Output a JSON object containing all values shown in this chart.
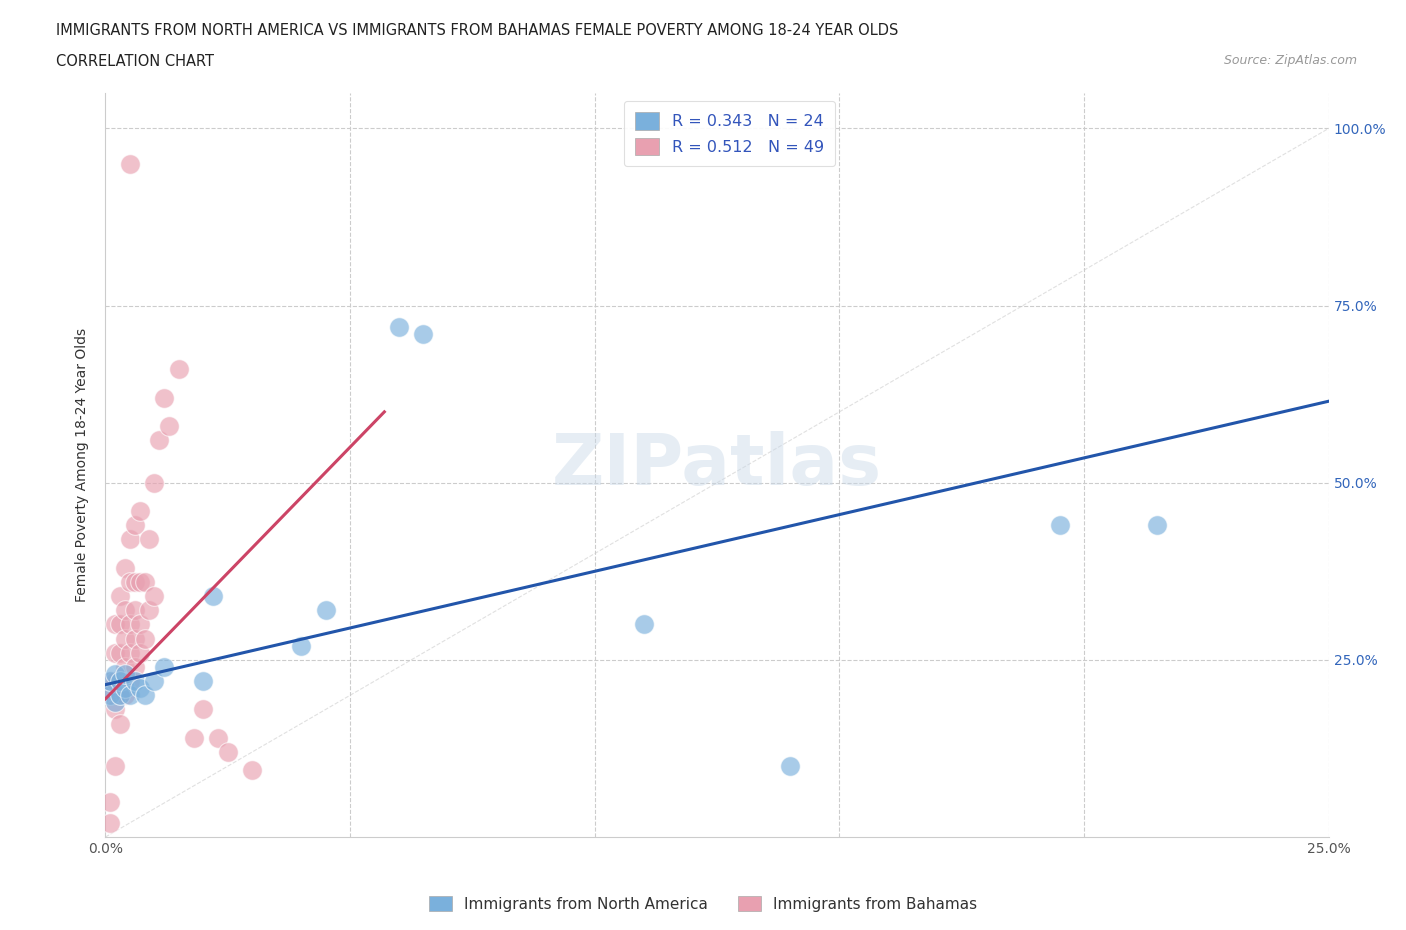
{
  "title_line1": "IMMIGRANTS FROM NORTH AMERICA VS IMMIGRANTS FROM BAHAMAS FEMALE POVERTY AMONG 18-24 YEAR OLDS",
  "title_line2": "CORRELATION CHART",
  "source": "Source: ZipAtlas.com",
  "ylabel": "Female Poverty Among 18-24 Year Olds",
  "xlim": [
    0,
    0.25
  ],
  "ylim": [
    0,
    1.05
  ],
  "blue_color": "#7ab0dc",
  "pink_color": "#e8a0b0",
  "blue_R": 0.343,
  "blue_N": 24,
  "pink_R": 0.512,
  "pink_N": 49,
  "legend_label_blue": "Immigrants from North America",
  "legend_label_pink": "Immigrants from Bahamas",
  "watermark": "ZIPatlas",
  "blue_scatter_x": [
    0.001,
    0.001,
    0.002,
    0.002,
    0.003,
    0.003,
    0.004,
    0.004,
    0.005,
    0.006,
    0.007,
    0.008,
    0.01,
    0.012,
    0.02,
    0.022,
    0.04,
    0.045,
    0.06,
    0.065,
    0.11,
    0.14,
    0.195,
    0.215
  ],
  "blue_scatter_y": [
    0.2,
    0.22,
    0.19,
    0.23,
    0.2,
    0.22,
    0.21,
    0.23,
    0.2,
    0.22,
    0.21,
    0.2,
    0.22,
    0.24,
    0.22,
    0.34,
    0.27,
    0.32,
    0.72,
    0.71,
    0.3,
    0.1,
    0.44,
    0.44
  ],
  "pink_scatter_x": [
    0.001,
    0.001,
    0.001,
    0.001,
    0.002,
    0.002,
    0.002,
    0.002,
    0.002,
    0.003,
    0.003,
    0.003,
    0.003,
    0.003,
    0.003,
    0.004,
    0.004,
    0.004,
    0.004,
    0.004,
    0.005,
    0.005,
    0.005,
    0.005,
    0.005,
    0.006,
    0.006,
    0.006,
    0.006,
    0.006,
    0.007,
    0.007,
    0.007,
    0.007,
    0.008,
    0.008,
    0.009,
    0.009,
    0.01,
    0.01,
    0.011,
    0.012,
    0.013,
    0.015,
    0.018,
    0.02,
    0.023,
    0.025,
    0.03
  ],
  "pink_scatter_y": [
    0.02,
    0.05,
    0.2,
    0.22,
    0.1,
    0.18,
    0.22,
    0.26,
    0.3,
    0.16,
    0.2,
    0.22,
    0.26,
    0.3,
    0.34,
    0.2,
    0.24,
    0.28,
    0.32,
    0.38,
    0.22,
    0.26,
    0.3,
    0.36,
    0.42,
    0.24,
    0.28,
    0.32,
    0.36,
    0.44,
    0.26,
    0.3,
    0.36,
    0.46,
    0.28,
    0.36,
    0.32,
    0.42,
    0.34,
    0.5,
    0.56,
    0.62,
    0.58,
    0.66,
    0.14,
    0.18,
    0.14,
    0.12,
    0.095
  ],
  "pink_outlier_x": [
    0.005
  ],
  "pink_outlier_y": [
    0.95
  ]
}
